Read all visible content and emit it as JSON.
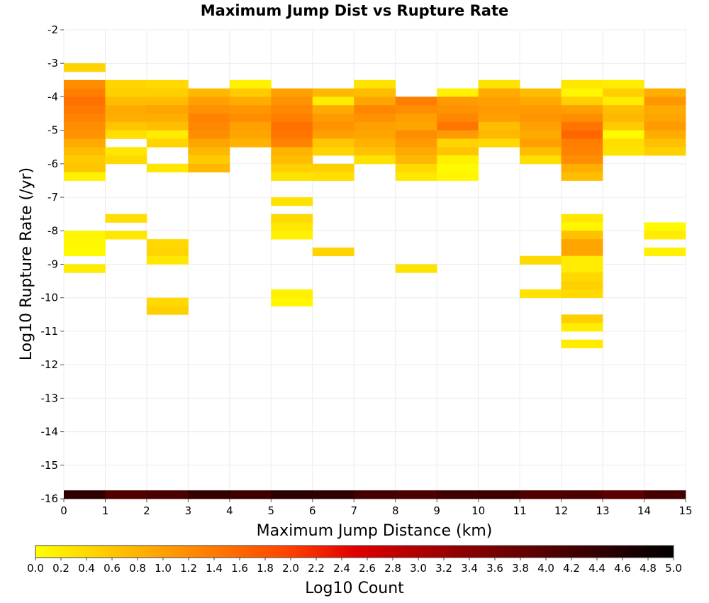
{
  "chart_data": {
    "type": "heatmap",
    "title": "Maximum Jump Dist vs Rupture Rate",
    "xlabel": "Maximum Jump Distance (km)",
    "ylabel": "Log10 Rupture Rate (/yr)",
    "xlim": [
      0,
      15
    ],
    "ylim": [
      -16,
      -2
    ],
    "x_ticks": [
      "0",
      "1",
      "2",
      "3",
      "4",
      "5",
      "6",
      "7",
      "8",
      "9",
      "10",
      "11",
      "12",
      "13",
      "14",
      "15"
    ],
    "y_ticks": [
      "-2",
      "-3",
      "-4",
      "-5",
      "-6",
      "-7",
      "-8",
      "-9",
      "-10",
      "-11",
      "-12",
      "-13",
      "-14",
      "-15",
      "-16"
    ],
    "x_bin_width": 1,
    "y_bin_height": 0.25,
    "grid": true,
    "colorbar": {
      "label": "Log10 Count",
      "min": 0,
      "max": 5,
      "ticks": [
        "0.0",
        "0.2",
        "0.4",
        "0.6",
        "0.8",
        "1.0",
        "1.2",
        "1.4",
        "1.6",
        "1.8",
        "2.0",
        "2.2",
        "2.4",
        "2.6",
        "2.8",
        "3.0",
        "3.2",
        "3.4",
        "3.6",
        "3.8",
        "4.0",
        "4.2",
        "4.4",
        "4.6",
        "4.8",
        "5.0"
      ],
      "colors": [
        "#ffff00",
        "#ffa000",
        "#ff4000",
        "#e00000",
        "#800000",
        "#000000"
      ]
    },
    "cells_note": "each cell is [x_bin_start_km, log10_rate_bin_start, log10_count]",
    "cells": [
      [
        0,
        -3.25,
        0.45
      ],
      [
        0,
        -3.75,
        1.2
      ],
      [
        0,
        -4.0,
        1.35
      ],
      [
        0,
        -4.25,
        1.5
      ],
      [
        0,
        -4.5,
        1.4
      ],
      [
        0,
        -4.75,
        1.3
      ],
      [
        0,
        -5.0,
        1.2
      ],
      [
        0,
        -5.25,
        1.15
      ],
      [
        0,
        -5.5,
        0.9
      ],
      [
        0,
        -5.75,
        0.7
      ],
      [
        0,
        -6.0,
        0.55
      ],
      [
        0,
        -6.25,
        0.6
      ],
      [
        0,
        -6.5,
        0.15
      ],
      [
        0,
        -8.25,
        0.1
      ],
      [
        0,
        -8.5,
        0.1
      ],
      [
        0,
        -8.75,
        0.05
      ],
      [
        0,
        -9.25,
        0.2
      ],
      [
        1,
        -3.75,
        0.45
      ],
      [
        1,
        -4.0,
        0.5
      ],
      [
        1,
        -4.25,
        0.7
      ],
      [
        1,
        -4.5,
        0.9
      ],
      [
        1,
        -4.75,
        0.85
      ],
      [
        1,
        -5.0,
        0.6
      ],
      [
        1,
        -5.25,
        0.35
      ],
      [
        1,
        -5.75,
        0.25
      ],
      [
        1,
        -6.0,
        0.4
      ],
      [
        1,
        -7.75,
        0.35
      ],
      [
        1,
        -8.25,
        0.25
      ],
      [
        2,
        -3.75,
        0.4
      ],
      [
        2,
        -4.0,
        0.5
      ],
      [
        2,
        -4.25,
        0.7
      ],
      [
        2,
        -4.5,
        0.95
      ],
      [
        2,
        -4.75,
        0.85
      ],
      [
        2,
        -5.0,
        0.7
      ],
      [
        2,
        -5.25,
        0.2
      ],
      [
        2,
        -5.5,
        0.45
      ],
      [
        2,
        -6.25,
        0.25
      ],
      [
        2,
        -8.5,
        0.4
      ],
      [
        2,
        -8.75,
        0.45
      ],
      [
        2,
        -9.0,
        0.25
      ],
      [
        2,
        -10.25,
        0.4
      ],
      [
        2,
        -10.5,
        0.5
      ],
      [
        3,
        -4.0,
        0.75
      ],
      [
        3,
        -4.25,
        1.0
      ],
      [
        3,
        -4.5,
        1.15
      ],
      [
        3,
        -4.75,
        1.3
      ],
      [
        3,
        -5.0,
        1.25
      ],
      [
        3,
        -5.25,
        1.2
      ],
      [
        3,
        -5.5,
        0.95
      ],
      [
        3,
        -5.75,
        0.75
      ],
      [
        3,
        -6.0,
        0.55
      ],
      [
        3,
        -6.25,
        0.75
      ],
      [
        4,
        -3.75,
        0.15
      ],
      [
        4,
        -4.0,
        0.55
      ],
      [
        4,
        -4.25,
        0.85
      ],
      [
        4,
        -4.5,
        1.1
      ],
      [
        4,
        -4.75,
        1.2
      ],
      [
        4,
        -5.0,
        1.0
      ],
      [
        4,
        -5.25,
        0.95
      ],
      [
        4,
        -5.5,
        0.8
      ],
      [
        5,
        -4.0,
        1.0
      ],
      [
        5,
        -4.25,
        1.15
      ],
      [
        5,
        -4.5,
        1.25
      ],
      [
        5,
        -4.75,
        1.35
      ],
      [
        5,
        -5.0,
        1.5
      ],
      [
        5,
        -5.25,
        1.45
      ],
      [
        5,
        -5.5,
        1.3
      ],
      [
        5,
        -5.75,
        0.8
      ],
      [
        5,
        -6.0,
        0.7
      ],
      [
        5,
        -6.25,
        0.5
      ],
      [
        5,
        -6.5,
        0.3
      ],
      [
        5,
        -7.25,
        0.3
      ],
      [
        5,
        -7.75,
        0.4
      ],
      [
        5,
        -8.0,
        0.25
      ],
      [
        5,
        -8.25,
        0.15
      ],
      [
        5,
        -10.0,
        0.15
      ],
      [
        5,
        -10.25,
        0.1
      ],
      [
        6,
        -4.0,
        0.75
      ],
      [
        6,
        -4.25,
        0.2
      ],
      [
        6,
        -4.5,
        0.9
      ],
      [
        6,
        -4.75,
        1.05
      ],
      [
        6,
        -5.0,
        1.15
      ],
      [
        6,
        -5.25,
        1.0
      ],
      [
        6,
        -5.5,
        0.6
      ],
      [
        6,
        -5.75,
        0.45
      ],
      [
        6,
        -6.25,
        0.5
      ],
      [
        6,
        -6.5,
        0.35
      ],
      [
        6,
        -8.75,
        0.45
      ],
      [
        7,
        -3.75,
        0.3
      ],
      [
        7,
        -4.0,
        0.7
      ],
      [
        7,
        -4.25,
        0.95
      ],
      [
        7,
        -4.5,
        1.25
      ],
      [
        7,
        -4.75,
        1.15
      ],
      [
        7,
        -5.0,
        1.0
      ],
      [
        7,
        -5.25,
        0.95
      ],
      [
        7,
        -5.5,
        0.8
      ],
      [
        7,
        -5.75,
        0.65
      ],
      [
        7,
        -6.0,
        0.3
      ],
      [
        8,
        -4.25,
        1.35
      ],
      [
        8,
        -4.5,
        1.2
      ],
      [
        8,
        -4.75,
        1.0
      ],
      [
        8,
        -5.0,
        0.95
      ],
      [
        8,
        -5.25,
        1.2
      ],
      [
        8,
        -5.5,
        1.05
      ],
      [
        8,
        -5.75,
        0.9
      ],
      [
        8,
        -6.0,
        0.75
      ],
      [
        8,
        -6.25,
        0.4
      ],
      [
        8,
        -6.5,
        0.25
      ],
      [
        8,
        -9.25,
        0.3
      ],
      [
        9,
        -4.0,
        0.15
      ],
      [
        9,
        -4.25,
        1.05
      ],
      [
        9,
        -4.5,
        1.15
      ],
      [
        9,
        -4.75,
        1.25
      ],
      [
        9,
        -5.0,
        1.45
      ],
      [
        9,
        -5.25,
        1.05
      ],
      [
        9,
        -5.5,
        0.45
      ],
      [
        9,
        -5.75,
        0.6
      ],
      [
        9,
        -6.0,
        0.15
      ],
      [
        9,
        -6.25,
        0.05
      ],
      [
        9,
        -6.5,
        0.1
      ],
      [
        10,
        -3.75,
        0.3
      ],
      [
        10,
        -4.0,
        0.9
      ],
      [
        10,
        -4.25,
        1.0
      ],
      [
        10,
        -4.5,
        1.05
      ],
      [
        10,
        -4.75,
        1.0
      ],
      [
        10,
        -5.0,
        0.7
      ],
      [
        10,
        -5.25,
        0.75
      ],
      [
        10,
        -5.5,
        0.4
      ],
      [
        11,
        -4.0,
        0.7
      ],
      [
        11,
        -4.25,
        0.9
      ],
      [
        11,
        -4.5,
        1.05
      ],
      [
        11,
        -4.75,
        1.1
      ],
      [
        11,
        -5.0,
        1.0
      ],
      [
        11,
        -5.25,
        0.9
      ],
      [
        11,
        -5.5,
        1.0
      ],
      [
        11,
        -5.75,
        0.7
      ],
      [
        11,
        -6.0,
        0.35
      ],
      [
        11,
        -9.0,
        0.4
      ],
      [
        11,
        -10.0,
        0.3
      ],
      [
        12,
        -3.75,
        0.25
      ],
      [
        12,
        -4.0,
        0.1
      ],
      [
        12,
        -4.25,
        0.5
      ],
      [
        12,
        -4.5,
        1.0
      ],
      [
        12,
        -4.75,
        1.2
      ],
      [
        12,
        -5.0,
        1.45
      ],
      [
        12,
        -5.25,
        1.6
      ],
      [
        12,
        -5.5,
        1.35
      ],
      [
        12,
        -5.75,
        1.3
      ],
      [
        12,
        -6.0,
        1.2
      ],
      [
        12,
        -6.25,
        0.85
      ],
      [
        12,
        -6.5,
        0.7
      ],
      [
        12,
        -7.75,
        0.25
      ],
      [
        12,
        -8.0,
        0.1
      ],
      [
        12,
        -8.25,
        0.65
      ],
      [
        12,
        -8.5,
        0.95
      ],
      [
        12,
        -8.75,
        0.95
      ],
      [
        12,
        -9.0,
        0.2
      ],
      [
        12,
        -9.25,
        0.2
      ],
      [
        12,
        -9.5,
        0.4
      ],
      [
        12,
        -9.75,
        0.5
      ],
      [
        12,
        -10.0,
        0.4
      ],
      [
        12,
        -10.75,
        0.5
      ],
      [
        12,
        -11.0,
        0.2
      ],
      [
        12,
        -11.5,
        0.2
      ],
      [
        13,
        -3.75,
        0.2
      ],
      [
        13,
        -4.0,
        0.5
      ],
      [
        13,
        -4.25,
        0.2
      ],
      [
        13,
        -4.5,
        0.7
      ],
      [
        13,
        -4.75,
        0.75
      ],
      [
        13,
        -5.0,
        0.55
      ],
      [
        13,
        -5.25,
        0.05
      ],
      [
        13,
        -5.5,
        0.35
      ],
      [
        13,
        -5.75,
        0.3
      ],
      [
        14,
        -4.0,
        0.85
      ],
      [
        14,
        -4.25,
        1.1
      ],
      [
        14,
        -4.5,
        0.9
      ],
      [
        14,
        -4.75,
        0.95
      ],
      [
        14,
        -5.0,
        1.05
      ],
      [
        14,
        -5.25,
        0.85
      ],
      [
        14,
        -5.5,
        0.65
      ],
      [
        14,
        -5.75,
        0.5
      ],
      [
        14,
        -8.0,
        0.05
      ],
      [
        14,
        -8.25,
        0.2
      ],
      [
        14,
        -8.75,
        0.15
      ],
      [
        0,
        -16.0,
        4.45
      ],
      [
        1,
        -16.0,
        4.05
      ],
      [
        2,
        -16.0,
        4.15
      ],
      [
        3,
        -16.0,
        4.4
      ],
      [
        4,
        -16.0,
        4.3
      ],
      [
        5,
        -16.0,
        4.5
      ],
      [
        6,
        -16.0,
        4.45
      ],
      [
        7,
        -16.0,
        4.2
      ],
      [
        8,
        -16.0,
        4.1
      ],
      [
        9,
        -16.0,
        4.25
      ],
      [
        10,
        -16.0,
        4.3
      ],
      [
        11,
        -16.0,
        4.05
      ],
      [
        12,
        -16.0,
        4.1
      ],
      [
        13,
        -16.0,
        3.95
      ],
      [
        14,
        -16.0,
        4.2
      ]
    ]
  }
}
